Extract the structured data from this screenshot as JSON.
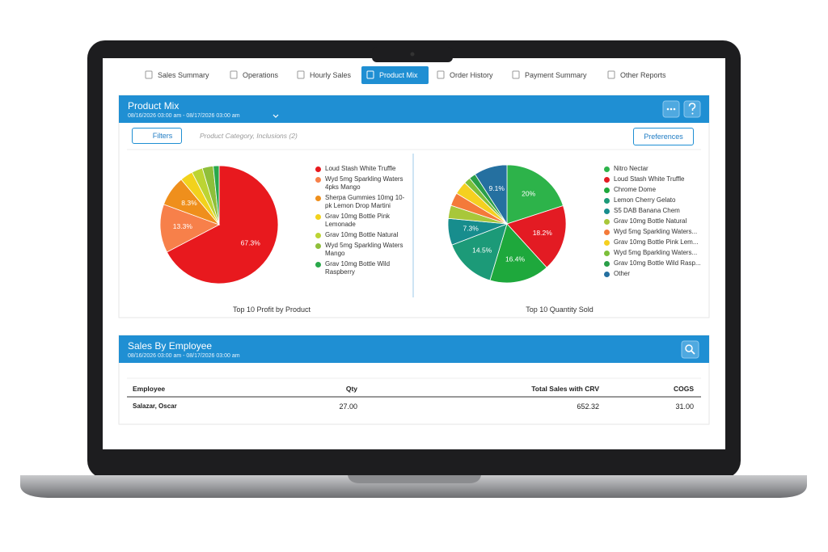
{
  "tabs": [
    "Sales Summary",
    "Operations",
    "Hourly Sales",
    "Product Mix",
    "Order History",
    "Payment Summary",
    "Other Reports"
  ],
  "product_mix": {
    "title": "Product Mix",
    "date_range": "08/16/2026 03:00 am - 08/17/2026 03:00 am",
    "filters_button": "Filters",
    "filter_summary": "Product Category, Inclusions (2)",
    "preferences_button": "Preferences"
  },
  "chart_data": [
    {
      "type": "pie",
      "title": "Top 10 Profit by Product",
      "categories": [
        "Loud Stash White Truffle",
        "Wyd 5mg Sparkling Waters 4pks Mango",
        "Sherpa Gummies 10mg 10-pk Lemon Drop Martini",
        "Grav 10mg Bottle Pink Lemonade",
        "Grav 10mg Bottle Natural",
        "Wyd 5mg Sparkling Waters Mango",
        "Grav 10mg Bottle Wild Raspberry"
      ],
      "values": [
        67.3,
        13.3,
        8.3,
        3.5,
        3,
        3,
        1.6
      ],
      "value_labels": [
        "67.3%",
        "13.3%",
        "8.3%",
        null,
        null,
        null,
        null
      ],
      "colors": [
        "#e8191e",
        "#f7804a",
        "#ef8f1c",
        "#f2d21c",
        "#bcd433",
        "#8fbf3a",
        "#2aa84a"
      ]
    },
    {
      "type": "pie",
      "title": "Top 10 Quantity Sold",
      "categories": [
        "Nitro Nectar",
        "Loud Stash White Truffle",
        "Chrome Dome",
        "Lemon Cherry Gelato",
        "S5 DAB Banana Chem",
        "Grav 10mg Bottle Natural",
        "Wyd 5mg Sparkling Waters...",
        "Grav 10mg Bottle Pink Lem...",
        "Wyd 5mg Bparkling Waters...",
        "Grav 10mg Bottle Wild Rasp...",
        "Other"
      ],
      "values": [
        20,
        18.2,
        16.4,
        14.5,
        7.3,
        3.6,
        3.6,
        3.6,
        1.8,
        1.8,
        9.1
      ],
      "value_labels": [
        "20%",
        "18.2%",
        "16.4%",
        "14.5%",
        "7.3%",
        null,
        null,
        null,
        null,
        null,
        "9.1%"
      ],
      "colors": [
        "#2db34a",
        "#e31b23",
        "#1ea83c",
        "#1c9a78",
        "#178d8d",
        "#a8c73a",
        "#f47a3a",
        "#f5d020",
        "#7cbf3a",
        "#2a9f48",
        "#2570a0"
      ]
    }
  ],
  "sales_by_employee": {
    "title": "Sales By Employee",
    "date_range": "08/16/2026 03:00 am - 08/17/2026 03:00 am",
    "table": {
      "columns": [
        "Employee",
        "Qty",
        "Total Sales with CRV",
        "COGS"
      ],
      "rows": [
        [
          "Salazar, Oscar",
          "27.00",
          "652.32",
          "31.00"
        ]
      ]
    }
  }
}
